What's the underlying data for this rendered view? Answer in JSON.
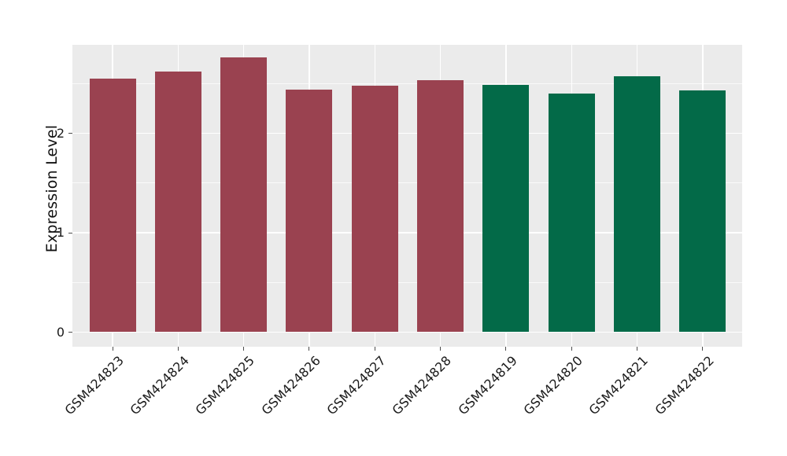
{
  "chart_data": {
    "type": "bar",
    "title": "",
    "xlabel": "",
    "ylabel": "Expression Level",
    "categories": [
      "GSM424823",
      "GSM424824",
      "GSM424825",
      "GSM424826",
      "GSM424827",
      "GSM424828",
      "GSM424819",
      "GSM424820",
      "GSM424821",
      "GSM424822"
    ],
    "values": [
      2.55,
      2.62,
      2.76,
      2.44,
      2.48,
      2.53,
      2.49,
      2.4,
      2.57,
      2.43
    ],
    "bar_colors": [
      "#9A4250",
      "#9A4250",
      "#9A4250",
      "#9A4250",
      "#9A4250",
      "#9A4250",
      "#036A48",
      "#036A48",
      "#036A48",
      "#036A48"
    ],
    "group_colors": {
      "left_group": "#9A4250",
      "right_group": "#036A48"
    },
    "y_axis": {
      "ticks": [
        0,
        1,
        2
      ],
      "minor_ticks": [
        0.5,
        1.5,
        2.5
      ],
      "ylim": [
        0,
        2.89
      ]
    },
    "x_tick_rotation_deg": 45,
    "grid": "on",
    "legend": "none",
    "panel_background": "#EBEBEB",
    "gridline_color": "#FFFFFF"
  }
}
